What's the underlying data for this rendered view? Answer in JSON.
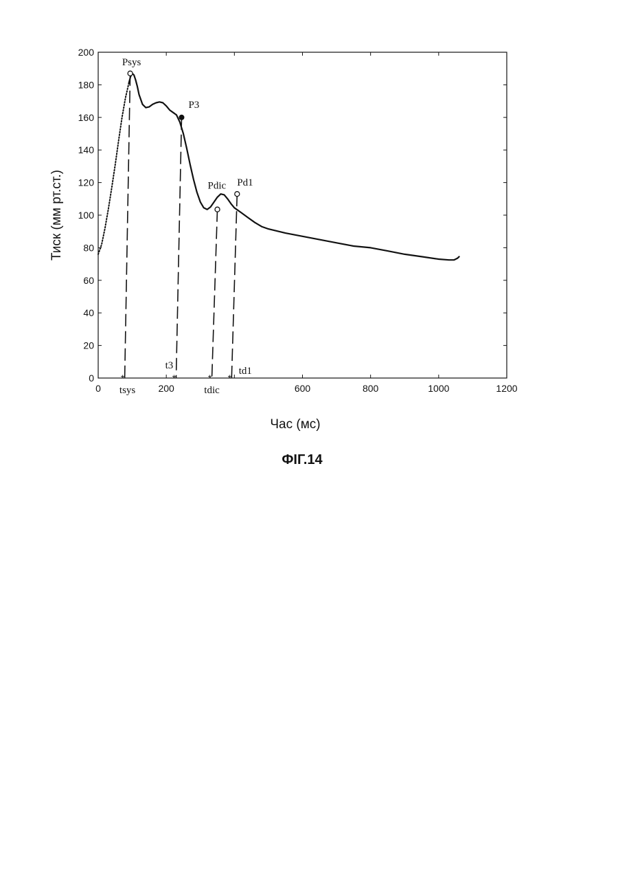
{
  "figure_caption": "ФІГ.14",
  "chart_data": {
    "type": "line",
    "title": "",
    "xlabel": "Час (мс)",
    "ylabel": "Тиск (мм рт.ст.)",
    "xlim": [
      0,
      1200
    ],
    "ylim": [
      0,
      200
    ],
    "xticks": [
      0,
      200,
      600,
      800,
      1000,
      1200
    ],
    "yticks": [
      0,
      20,
      40,
      60,
      80,
      100,
      120,
      140,
      160,
      180,
      200
    ],
    "grid": false,
    "series": [
      {
        "style": "dotted",
        "x": [
          0,
          10,
          20,
          30,
          40,
          50,
          60,
          70,
          80,
          90
        ],
        "y": [
          76,
          82,
          92,
          104,
          117,
          131,
          146,
          160,
          172,
          181
        ]
      },
      {
        "style": "solid",
        "x": [
          90,
          95,
          100,
          105,
          110,
          115,
          120,
          130,
          140,
          150,
          160,
          170,
          180,
          190,
          200,
          210,
          220,
          230,
          240,
          250,
          260,
          270,
          280,
          290,
          300,
          310,
          320,
          330,
          340,
          350,
          360,
          370,
          380,
          390,
          400,
          420,
          440,
          460,
          480,
          500,
          550,
          600,
          650,
          700,
          750,
          800,
          850,
          900,
          950,
          1000,
          1030,
          1045,
          1055,
          1060
        ],
        "y": [
          181,
          185,
          187,
          186,
          183,
          179,
          174,
          168,
          166,
          166.5,
          168,
          169,
          169.5,
          169,
          167,
          164.5,
          163,
          161.5,
          157,
          150,
          141,
          131,
          122,
          114,
          108,
          104.5,
          103.5,
          105,
          108,
          111,
          113,
          112.5,
          110,
          107,
          104.5,
          101.5,
          98.5,
          95.5,
          93,
          91.5,
          89,
          87,
          85,
          83,
          81,
          80,
          78,
          76,
          74.5,
          73,
          72.5,
          72.5,
          73.5,
          74.5
        ]
      }
    ],
    "markers": [
      {
        "label": "Psys",
        "x": 94,
        "y": 187,
        "shape": "open-circle",
        "time_label": "tsys"
      },
      {
        "label": "P3",
        "x": 245,
        "y": 160,
        "shape": "filled-circle",
        "time_label": "t3"
      },
      {
        "label": "Pdic",
        "x": 350,
        "y": 103.5,
        "shape": "open-circle",
        "time_label": "tdic"
      },
      {
        "label": "Pd1",
        "x": 408,
        "y": 113,
        "shape": "open-circle",
        "time_label": "td1"
      }
    ]
  }
}
